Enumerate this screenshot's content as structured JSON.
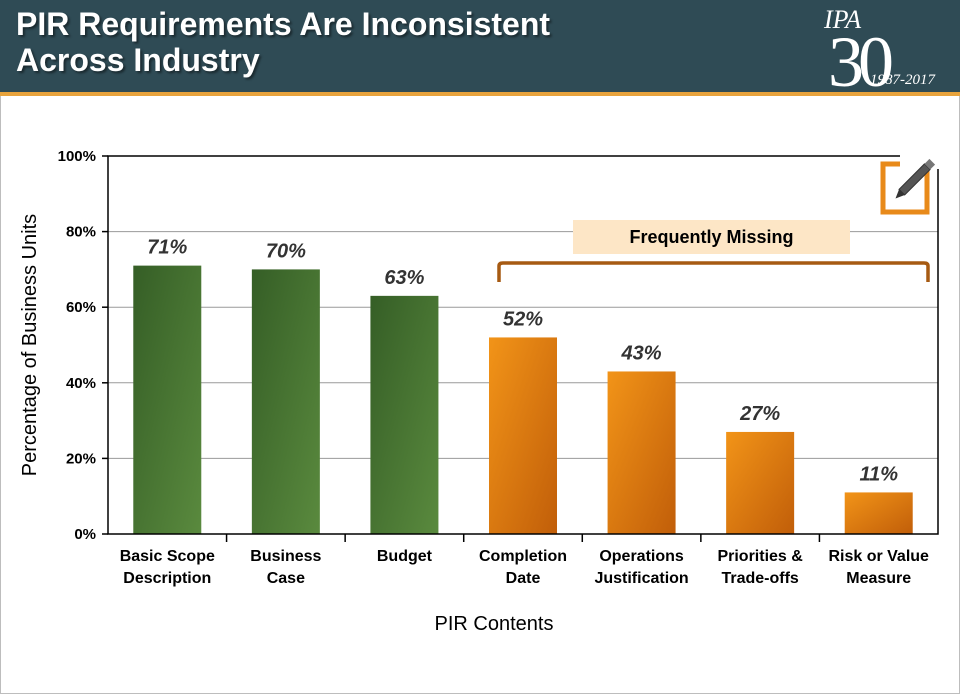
{
  "header": {
    "title_line1": "PIR Requirements Are Inconsistent",
    "title_line2": "Across Industry",
    "logo": {
      "brand": "IPA",
      "number": "30",
      "years": "1987-2017"
    }
  },
  "colors": {
    "header_bg": "#2f4b55",
    "header_rule": "#e8a33c",
    "present_bar": "#4a7a35",
    "missing_bar": "#ea8a10",
    "bracket": "#a65a12",
    "missing_box": "#fde6c6",
    "note_icon": "#e88a1a"
  },
  "annotation": {
    "frequently_missing": "Frequently Missing",
    "icon": "pencil-note-icon"
  },
  "chart_data": {
    "type": "bar",
    "xlabel": "PIR Contents",
    "ylabel": "Percentage of Business Units",
    "ylim": [
      0,
      100
    ],
    "yticks": [
      "0%",
      "20%",
      "40%",
      "60%",
      "80%",
      "100%"
    ],
    "grid": true,
    "categories": [
      [
        "Basic Scope",
        "Description"
      ],
      [
        "Business",
        "Case"
      ],
      [
        "Budget"
      ],
      [
        "Completion",
        "Date"
      ],
      [
        "Operations",
        "Justification"
      ],
      [
        "Priorities &",
        "Trade-offs"
      ],
      [
        "Risk or Value",
        "Measure"
      ]
    ],
    "values": [
      71,
      70,
      63,
      52,
      43,
      27,
      11
    ],
    "data_labels": [
      "71%",
      "70%",
      "63%",
      "52%",
      "43%",
      "27%",
      "11%"
    ],
    "groups": [
      "present",
      "present",
      "present",
      "missing",
      "missing",
      "missing",
      "missing"
    ]
  }
}
